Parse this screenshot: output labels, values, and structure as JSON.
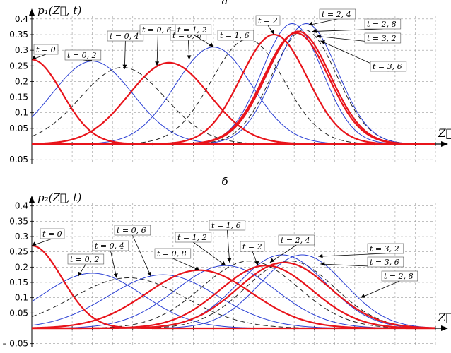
{
  "captions": [
    "а",
    "б"
  ],
  "chart_data": [
    {
      "type": "line",
      "ylabel": "p₁(Z⃗, t)",
      "xlabel": "Z⃗",
      "ylim": [
        -0.05,
        0.42
      ],
      "y_ticks": [
        "0.4",
        "0.35",
        "0.3",
        "0.25",
        "0.2",
        "0.15",
        "0.1",
        "0.05",
        "– 0.05"
      ],
      "x_domain": [
        0,
        20
      ],
      "grid": "dashed",
      "colors": {
        "red": "#e8141b",
        "blue": "#2a3fd4",
        "black": "#222222"
      },
      "series": [
        {
          "name": "t = 0",
          "mu": 0.0,
          "sigma": 1.5,
          "peak": 0.27,
          "style": "red"
        },
        {
          "name": "t = 0, 2",
          "mu": 3.0,
          "sigma": 2.0,
          "peak": 0.265,
          "style": "blue"
        },
        {
          "name": "t = 0, 4",
          "mu": 4.5,
          "sigma": 2.1,
          "peak": 0.245,
          "style": "dash"
        },
        {
          "name": "t = 0, 6",
          "mu": 6.8,
          "sigma": 2.0,
          "peak": 0.26,
          "style": "red"
        },
        {
          "name": "t = 0, 8",
          "mu": 9.0,
          "sigma": 1.9,
          "peak": 0.31,
          "style": "blue"
        },
        {
          "name": "t = 1, 2",
          "mu": 10.7,
          "sigma": 1.8,
          "peak": 0.335,
          "style": "dash"
        },
        {
          "name": "t = 1, 6",
          "mu": 12.0,
          "sigma": 1.65,
          "peak": 0.35,
          "style": "red"
        },
        {
          "name": "t = 2",
          "mu": 12.9,
          "sigma": 1.5,
          "peak": 0.385,
          "style": "blue"
        },
        {
          "name": "t = 2, 4",
          "mu": 13.6,
          "sigma": 1.55,
          "peak": 0.385,
          "style": "blue"
        },
        {
          "name": "t = 2, 8",
          "mu": 13.2,
          "sigma": 1.6,
          "peak": 0.36,
          "style": "red"
        },
        {
          "name": "t = 3, 2",
          "mu": 13.5,
          "sigma": 1.6,
          "peak": 0.365,
          "style": "dash"
        },
        {
          "name": "t = 3, 6",
          "mu": 13.1,
          "sigma": 1.6,
          "peak": 0.355,
          "style": "red"
        }
      ],
      "label_anchors": [
        {
          "text": "t = 0",
          "target_x": 0.0,
          "target_y": 0.27
        },
        {
          "text": "t = 0, 2",
          "target_x": 3.0,
          "target_y": 0.265
        },
        {
          "text": "t = 0, 4",
          "target_x": 4.6,
          "target_y": 0.24
        },
        {
          "text": "t = 0, 6",
          "target_x": 6.2,
          "target_y": 0.25
        },
        {
          "text": "t = 0, 8",
          "target_x": 7.8,
          "target_y": 0.27
        },
        {
          "text": "t = 1, 2",
          "target_x": 9.0,
          "target_y": 0.31
        },
        {
          "text": "t = 1, 6",
          "target_x": 10.7,
          "target_y": 0.335
        },
        {
          "text": "t = 2",
          "target_x": 12.0,
          "target_y": 0.35
        },
        {
          "text": "t = 2, 4",
          "target_x": 13.7,
          "target_y": 0.38
        },
        {
          "text": "t = 2, 8",
          "target_x": 13.9,
          "target_y": 0.36
        },
        {
          "text": "t = 3, 2",
          "target_x": 14.1,
          "target_y": 0.345
        },
        {
          "text": "t = 3, 6",
          "target_x": 14.3,
          "target_y": 0.33
        }
      ]
    },
    {
      "type": "line",
      "ylabel": "p₂(Z⃗, t)",
      "xlabel": "Z⃗",
      "ylim": [
        -0.05,
        0.42
      ],
      "y_ticks": [
        "0.4",
        "0.35",
        "0.3",
        "0.25",
        "0.2",
        "0.15",
        "0.1",
        "0.05",
        "– 0.05"
      ],
      "x_domain": [
        0,
        20
      ],
      "grid": "dashed",
      "colors": {
        "red": "#e8141b",
        "blue": "#2a3fd4",
        "black": "#222222"
      },
      "series": [
        {
          "name": "t = 0",
          "mu": 0.0,
          "sigma": 1.5,
          "peak": 0.27,
          "style": "red"
        },
        {
          "name": "t = 0, 2",
          "mu": 3.0,
          "sigma": 2.5,
          "peak": 0.18,
          "style": "blue"
        },
        {
          "name": "t = 0, 4",
          "mu": 4.8,
          "sigma": 2.8,
          "peak": 0.165,
          "style": "dash"
        },
        {
          "name": "t = 0, 6",
          "mu": 6.5,
          "sigma": 2.7,
          "peak": 0.175,
          "style": "blue"
        },
        {
          "name": "t = 0, 8",
          "mu": 8.3,
          "sigma": 2.6,
          "peak": 0.19,
          "style": "red"
        },
        {
          "name": "t = 1, 2",
          "mu": 9.6,
          "sigma": 2.5,
          "peak": 0.205,
          "style": "blue"
        },
        {
          "name": "t = 1, 6",
          "mu": 10.8,
          "sigma": 2.4,
          "peak": 0.22,
          "style": "dash"
        },
        {
          "name": "t = 2",
          "mu": 11.6,
          "sigma": 2.3,
          "peak": 0.205,
          "style": "red"
        },
        {
          "name": "t = 2, 4",
          "mu": 12.4,
          "sigma": 2.2,
          "peak": 0.24,
          "style": "blue"
        },
        {
          "name": "t = 2, 8",
          "mu": 12.5,
          "sigma": 2.3,
          "peak": 0.215,
          "style": "red"
        },
        {
          "name": "t = 3, 2",
          "mu": 13.4,
          "sigma": 2.1,
          "peak": 0.24,
          "style": "blue"
        },
        {
          "name": "t = 3, 6",
          "mu": 12.8,
          "sigma": 2.2,
          "peak": 0.22,
          "style": "dash"
        }
      ],
      "label_anchors": [
        {
          "text": "t = 0",
          "target_x": 0.0,
          "target_y": 0.27
        },
        {
          "text": "t = 0, 2",
          "target_x": 2.3,
          "target_y": 0.17
        },
        {
          "text": "t = 0, 4",
          "target_x": 4.2,
          "target_y": 0.165
        },
        {
          "text": "t = 0, 6",
          "target_x": 5.9,
          "target_y": 0.17
        },
        {
          "text": "t = 0, 8",
          "target_x": 8.3,
          "target_y": 0.19
        },
        {
          "text": "t = 1, 2",
          "target_x": 9.6,
          "target_y": 0.205
        },
        {
          "text": "t = 1, 6",
          "target_x": 9.8,
          "target_y": 0.215
        },
        {
          "text": "t = 2",
          "target_x": 11.2,
          "target_y": 0.205
        },
        {
          "text": "t = 2, 4",
          "target_x": 11.8,
          "target_y": 0.215
        },
        {
          "text": "t = 3, 2",
          "target_x": 14.2,
          "target_y": 0.235
        },
        {
          "text": "t = 3, 6",
          "target_x": 14.3,
          "target_y": 0.21
        },
        {
          "text": "t = 2, 8",
          "target_x": 16.3,
          "target_y": 0.1
        }
      ]
    }
  ]
}
